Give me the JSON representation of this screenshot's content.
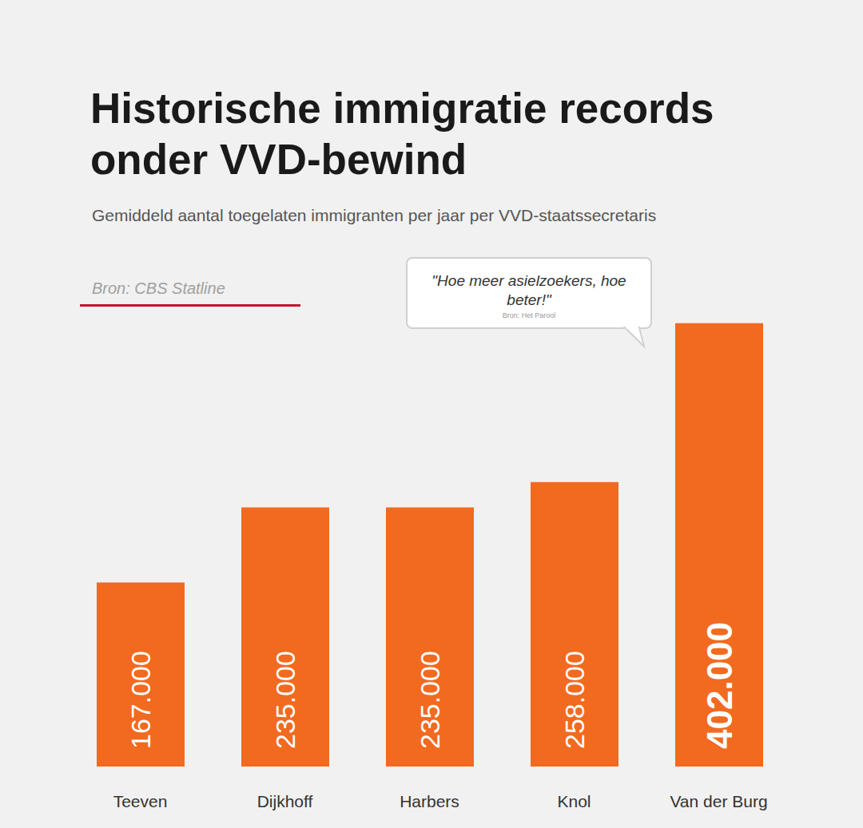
{
  "chart_data": {
    "type": "bar",
    "title": "Historische immigratie records onder VVD-bewind",
    "subtitle": "Gemiddeld aantal toegelaten immigranten per jaar per VVD-staatssecretaris",
    "source": "Bron: CBS Statline",
    "annotation": {
      "text": "\"Hoe meer asielzoekers, hoe beter!\"",
      "source": "Bron: Het Parool"
    },
    "categories": [
      "Teeven",
      "Dijkhoff",
      "Harbers",
      "Knol",
      "Van der Burg"
    ],
    "values": [
      167000,
      235000,
      235000,
      258000,
      402000
    ],
    "value_labels": [
      "167.000",
      "235.000",
      "235.000",
      "258.000",
      "402.000"
    ],
    "color": "#f26a1f",
    "ylim": [
      0,
      420000
    ],
    "data_labels": true,
    "tick_labels": "x"
  }
}
